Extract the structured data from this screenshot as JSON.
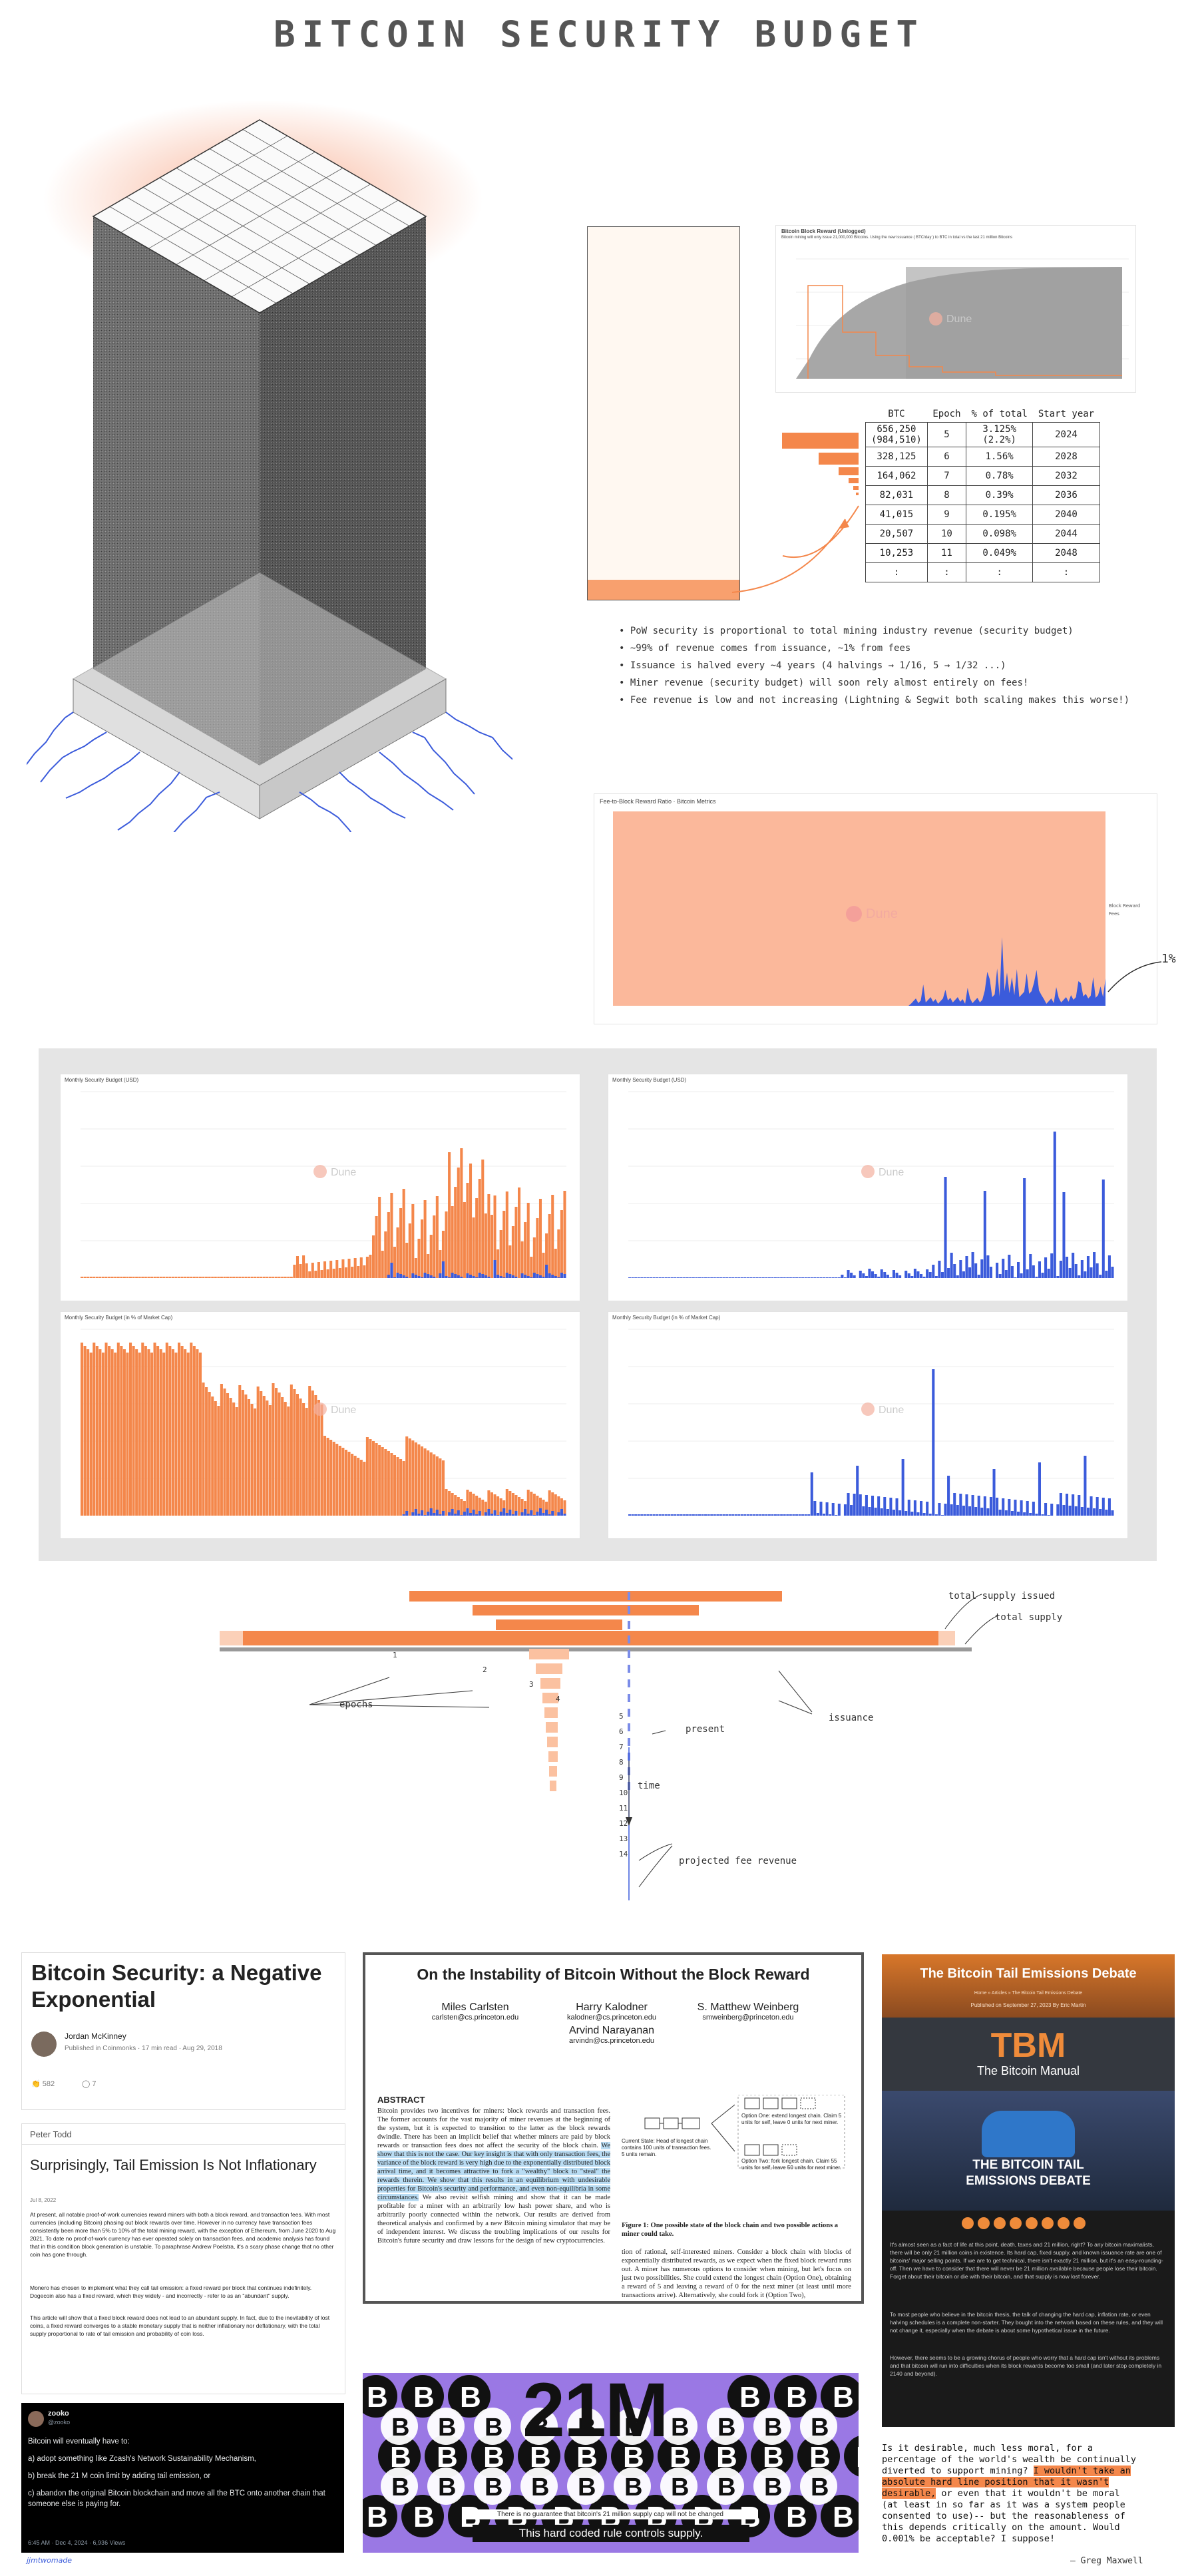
{
  "title": "BITCOIN SECURITY BUDGET",
  "dune_label": "Dune",
  "small_chart_title": "Bitcoin Block Reward (Unlogged)",
  "small_chart_subtitle": "Bitcoin mining will only issue 21,000,000 Bitcoins. Using the new issuance ( BTC/day ) to BTC in total vs the last 21 million Bitcoins",
  "table": {
    "headers": [
      "BTC",
      "Epoch",
      "% of total",
      "Start year"
    ],
    "rows": [
      [
        "656,250\n(984,510)",
        "5",
        "3.125%\n(2.2%)",
        "2024"
      ],
      [
        "328,125",
        "6",
        "1.56%",
        "2028"
      ],
      [
        "164,062",
        "7",
        "0.78%",
        "2032"
      ],
      [
        "82,031",
        "8",
        "0.39%",
        "2036"
      ],
      [
        "41,015",
        "9",
        "0.195%",
        "2040"
      ],
      [
        "20,507",
        "10",
        "0.098%",
        "2044"
      ],
      [
        "10,253",
        "11",
        "0.049%",
        "2048"
      ],
      [
        ":",
        ":",
        ":",
        ":"
      ]
    ]
  },
  "bullets": [
    "PoW security is proportional to total mining industry revenue (security budget)",
    "~99% of revenue comes from issuance, ~1% from fees",
    "Issuance is halved every ~4 years (4 halvings → 1/16, 5 → 1/32 ...)",
    "Miner revenue (security budget) will soon rely almost entirely on fees!",
    "Fee revenue is low and not increasing (Lightning & Segwit both scaling makes this worse!)"
  ],
  "big_chart": {
    "title": "Fee-to-Block Reward Ratio · Bitcoin Metrics",
    "legend": [
      "Block Reward",
      "Fees"
    ],
    "annotation": "1%"
  },
  "grid_charts": [
    {
      "title": "Monthly Security Budget (USD)"
    },
    {
      "title": "Monthly Security Budget (USD)"
    },
    {
      "title": "Monthly Security Budget (in % of Market Cap)"
    },
    {
      "title": "Monthly Security Budget (in % of Market Cap)"
    }
  ],
  "supply_diagram": {
    "labels": {
      "total_supply_issued": "total supply issued",
      "total_supply": "total supply",
      "epochs": "epochs",
      "present": "present",
      "issuance": "issuance",
      "time": "time",
      "projected_fee_revenue": "projected fee revenue"
    },
    "epoch_numbers": [
      "1",
      "2",
      "3",
      "4",
      "5",
      "6",
      "7",
      "8",
      "9",
      "10",
      "11",
      "12",
      "13",
      "14"
    ]
  },
  "card1": {
    "title": "Bitcoin Security: a Negative Exponential",
    "author": "Jordan McKinney",
    "meta": "Published in Coinmonks · 17 min read · Aug 29, 2018",
    "claps": "582",
    "comments": "7"
  },
  "card2": {
    "author": "Peter Todd",
    "title": "Surprisingly, Tail Emission Is Not Inflationary",
    "date": "Jul 8, 2022",
    "p1": "At present, all notable proof-of-work currencies reward miners with both a block reward, and transaction fees. With most currencies (including Bitcoin) phasing out block rewards over time. However in no currency have transaction fees consistently been more than 5% to 10% of the total mining reward, with the exception of Ethereum, from June 2020 to Aug 2021. To date no proof-of-work currency has ever operated solely on transaction fees, and academic analysis has found that in this condition block generation is unstable. To paraphrase Andrew Poelstra, it's a scary phase change that no other coin has gone through.",
    "p2": "Monero has chosen to implement what they call tail emission: a fixed reward per block that continues indefinitely. Dogecoin also has a fixed reward, which they widely - and incorrectly - refer to as an \"abundant\" supply.",
    "p3": "This article will show that a fixed block reward does not lead to an abundant supply. In fact, due to the inevitability of lost coins, a fixed reward converges to a stable monetary supply that is neither inflationary nor deflationary, with the total supply proportional to rate of tail emission and probability of coin loss."
  },
  "tweet": {
    "name": "zooko",
    "handle": "@zooko",
    "lines": [
      "Bitcoin will eventually have to:",
      "a) adopt something like Zcash's Network Sustainability Mechanism,",
      "b) break the 21 M coin limit by adding tail emission, or",
      "c) abandon the original Bitcoin blockchain and move all the BTC onto another chain that someone else is paying for."
    ],
    "meta": "6:45 AM · Dec 4, 2024 · 6,936 Views"
  },
  "paper": {
    "title": "On the Instability of Bitcoin Without the Block Reward",
    "authors": [
      {
        "name": "Miles Carlsten",
        "email": "carlsten@cs.princeton.edu"
      },
      {
        "name": "Harry Kalodner",
        "email": "kalodner@cs.princeton.edu"
      },
      {
        "name": "S. Matthew Weinberg",
        "email": "smweinberg@princeton.edu"
      },
      {
        "name": "Arvind Narayanan",
        "email": "arvindn@cs.princeton.edu"
      }
    ],
    "abstract_heading": "ABSTRACT",
    "abstract": "Bitcoin provides two incentives for miners: block rewards and transaction fees. The former accounts for the vast majority of miner revenues at the beginning of the system, but it is expected to transition to the latter as the block rewards dwindle. There has been an implicit belief that whether miners are paid by block rewards or transaction fees does not affect the security of the block chain.",
    "abstract_highlight": "We show that this is not the case. Our key insight is that with only transaction fees, the variance of the block reward is very high due to the exponentially distributed block arrival time, and it becomes attractive to fork a \"wealthy\" block to \"steal\" the rewards therein. We show that this results in an equilibrium with undesirable properties for Bitcoin's security and performance, and even non-equilibria in some circumstances.",
    "abstract_end": "We also revisit selfish mining and show that it can be made profitable for a miner with an arbitrarily low hash power share, and who is arbitrarily poorly connected within the network. Our results are derived from theoretical analysis and confirmed by a new Bitcoin mining simulator that may be of independent interest. We discuss the troubling implications of our results for Bitcoin's future security and draw lessons for the design of new cryptocurrencies.",
    "figure_caption": "Figure 1: One possible state of the block chain and two possible actions a miner could take.",
    "right_text": "tion of rational, self-interested miners. Consider a block chain with blocks of exponentially distributed rewards, as we expect when the fixed block reward runs out. A miner has numerous options to consider when mining, but let's focus on just two possibilities. She could extend the longest chain (Option One), obtaining a reward of 5 and leaving a reward of 0 for the next miner (at least until more transactions arrive). Alternatively, she could fork it (Option Two),",
    "current_state": "Current State: Head of longest chain contains 100 units of transaction fees. 5 units remain.",
    "option_one": "Option One: extend longest chain. Claim 5 units for self, leave 0 units for next miner.",
    "option_two": "Option Two: fork longest chain. Claim 55 units for self, leave 50 units for next miner."
  },
  "banner21m": {
    "big": "21M",
    "caption": "There is no guarantee that bitcoin's 21 million supply cap will not be changed",
    "subtitle": "This hard coded rule controls supply."
  },
  "tbm": {
    "header": "The Bitcoin Tail Emissions Debate",
    "breadcrumb": "Home » Articles » The Bitcoin Tail Emissions Debate",
    "meta": "Published on September 27, 2023   By Eric Martin",
    "logo": "TBM",
    "brand": "The Bitcoin Manual",
    "image_title": "THE BITCOIN TAIL EMISSIONS DEBATE",
    "p1": "It's almost seen as a fact of life at this point, death, taxes and 21 million, right? To any bitcoin maximalists, there will be only 21 million coins in existence. Its hard cap, fixed supply, and known issuance rate are one of bitcoins' major selling points. If we are to get technical, there isn't exactly 21 million, but it's an easy-rounding-off. Then we have to consider that there will never be 21 million available because people lose their bitcoin. Forget about their bitcoin or die with their bitcoin, and that supply is now lost forever.",
    "p2": "To most people who believe in the bitcoin thesis, the talk of changing the hard cap, inflation rate, or even halving schedules is a complete non-starter. They bought into the network based on these rules, and they will not change it, especially when the debate is about some hypothetical issue in the future.",
    "p3": "However, there seems to be a growing chorus of people who worry that a hard cap isn't without its problems and that bitcoin will run into difficulties when its block rewards become too small (and later stop completely in 2140 and beyond)."
  },
  "quote": {
    "pre": "Is it desirable, much less moral, for a percentage of the world's wealth be continually diverted to support mining?",
    "highlight": "I wouldn't take an absolute hard line position that it wasn't desirable,",
    "post": "or even that it wouldn't be moral (at least in so far as it was a system people consented to use)-- but the reasonableness of this depends critically on the amount.   Would 0.001% be acceptable?  I suppose!",
    "attribution": "— Greg Maxwell"
  },
  "signature": "jjmtwomade",
  "colors": {
    "orange": "#f4874b",
    "peach": "#fbb89b",
    "blue": "#3b5bdb",
    "gray_bg": "#e5e5e5"
  }
}
